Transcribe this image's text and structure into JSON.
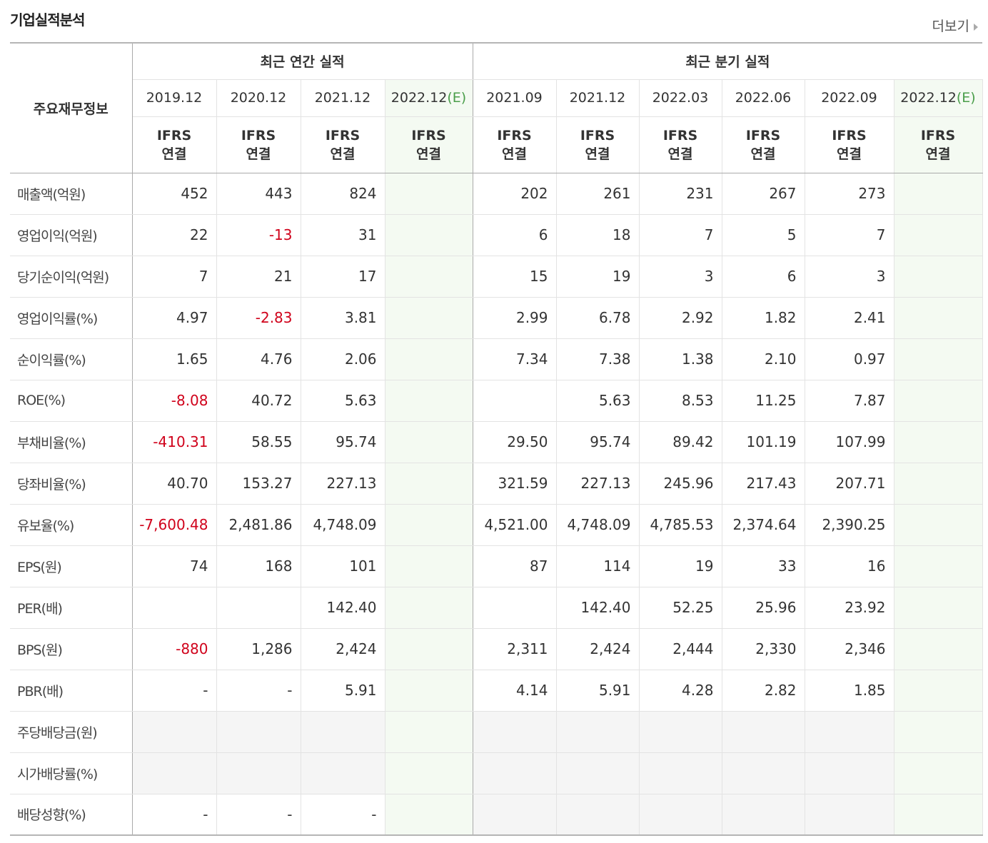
{
  "header": {
    "title": "기업실적분석",
    "more": "더보기"
  },
  "table": {
    "row_header": "주요재무정보",
    "standard": [
      "IFRS",
      "연결"
    ],
    "groups": [
      {
        "label": "최근 연간 실적",
        "columns": [
          {
            "period": "2019.12"
          },
          {
            "period": "2020.12"
          },
          {
            "period": "2021.12"
          },
          {
            "period": "2022.12",
            "suffix": "(E)"
          }
        ]
      },
      {
        "label": "최근 분기 실적",
        "columns": [
          {
            "period": "2021.09"
          },
          {
            "period": "2021.12"
          },
          {
            "period": "2022.03"
          },
          {
            "period": "2022.06"
          },
          {
            "period": "2022.09"
          },
          {
            "period": "2022.12",
            "suffix": "(E)"
          }
        ]
      }
    ],
    "sections": [
      {
        "rows": [
          {
            "label": "매출액(억원)",
            "values": [
              "452",
              "443",
              "824",
              null,
              "202",
              "261",
              "231",
              "267",
              "273",
              null
            ]
          },
          {
            "label": "영업이익(억원)",
            "values": [
              "22",
              "-13",
              "31",
              null,
              "6",
              "18",
              "7",
              "5",
              "7",
              null
            ]
          },
          {
            "label": "당기순이익(억원)",
            "values": [
              "7",
              "21",
              "17",
              null,
              "15",
              "19",
              "3",
              "6",
              "3",
              null
            ]
          }
        ]
      },
      {
        "rows": [
          {
            "label": "영업이익률(%)",
            "values": [
              "4.97",
              "-2.83",
              "3.81",
              null,
              "2.99",
              "6.78",
              "2.92",
              "1.82",
              "2.41",
              null
            ]
          },
          {
            "label": "순이익률(%)",
            "values": [
              "1.65",
              "4.76",
              "2.06",
              null,
              "7.34",
              "7.38",
              "1.38",
              "2.10",
              "0.97",
              null
            ]
          },
          {
            "label": "ROE(%)",
            "values": [
              "-8.08",
              "40.72",
              "5.63",
              null,
              null,
              "5.63",
              "8.53",
              "11.25",
              "7.87",
              null
            ]
          }
        ]
      },
      {
        "rows": [
          {
            "label": "부채비율(%)",
            "values": [
              "-410.31",
              "58.55",
              "95.74",
              null,
              "29.50",
              "95.74",
              "89.42",
              "101.19",
              "107.99",
              null
            ]
          },
          {
            "label": "당좌비율(%)",
            "values": [
              "40.70",
              "153.27",
              "227.13",
              null,
              "321.59",
              "227.13",
              "245.96",
              "217.43",
              "207.71",
              null
            ]
          },
          {
            "label": "유보율(%)",
            "values": [
              "-7,600.48",
              "2,481.86",
              "4,748.09",
              null,
              "4,521.00",
              "4,748.09",
              "4,785.53",
              "2,374.64",
              "2,390.25",
              null
            ]
          }
        ]
      },
      {
        "rows": [
          {
            "label": "EPS(원)",
            "values": [
              "74",
              "168",
              "101",
              null,
              "87",
              "114",
              "19",
              "33",
              "16",
              null
            ]
          },
          {
            "label": "PER(배)",
            "values": [
              null,
              null,
              "142.40",
              null,
              null,
              "142.40",
              "52.25",
              "25.96",
              "23.92",
              null
            ]
          },
          {
            "label": "BPS(원)",
            "values": [
              "-880",
              "1,286",
              "2,424",
              null,
              "2,311",
              "2,424",
              "2,444",
              "2,330",
              "2,346",
              null
            ]
          },
          {
            "label": "PBR(배)",
            "values": [
              "-",
              "-",
              "5.91",
              null,
              "4.14",
              "5.91",
              "4.28",
              "2.82",
              "1.85",
              null
            ]
          }
        ]
      },
      {
        "rows": [
          {
            "label": "주당배당금(원)",
            "values": [
              null,
              null,
              null,
              null,
              null,
              null,
              null,
              null,
              null,
              null
            ]
          },
          {
            "label": "시가배당률(%)",
            "values": [
              null,
              null,
              null,
              null,
              null,
              null,
              null,
              null,
              null,
              null
            ]
          },
          {
            "label": "배당성향(%)",
            "values": [
              "-",
              "-",
              "-",
              null,
              null,
              null,
              null,
              null,
              null,
              null
            ]
          }
        ]
      }
    ]
  }
}
